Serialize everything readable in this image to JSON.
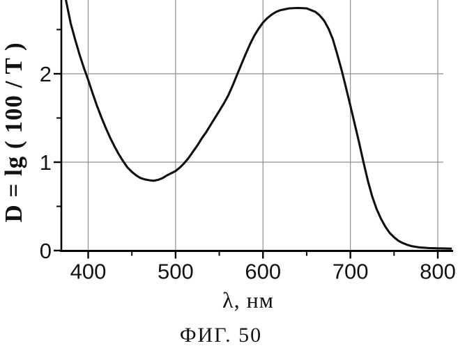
{
  "figure": {
    "caption": "ФИГ. 50"
  },
  "chart_data": {
    "type": "line",
    "title": "",
    "xlabel": "λ, нм",
    "ylabel": "D = lg ( 100 / T )",
    "xlim": [
      370,
      817
    ],
    "ylim": [
      0,
      2.84
    ],
    "x_ticks": [
      400,
      500,
      600,
      700,
      800
    ],
    "x_minor_ticks": [
      450,
      550,
      650,
      750
    ],
    "y_ticks": [
      0,
      1,
      2
    ],
    "y_minor_ticks": [
      0.5,
      1.5,
      2.5
    ],
    "grid": {
      "vertical_at": [
        400,
        500,
        600,
        700,
        800
      ],
      "horizontal_at": [
        1,
        2
      ]
    },
    "legend": "none",
    "colors": {
      "curve": "#101010",
      "grid": "#8f8f8f",
      "axis": "#000000",
      "background": "#ffffff"
    },
    "series": [
      {
        "points": [
          [
            372,
            2.97
          ],
          [
            375,
            2.81
          ],
          [
            380,
            2.57
          ],
          [
            385,
            2.39
          ],
          [
            390,
            2.22
          ],
          [
            395,
            2.07
          ],
          [
            400,
            1.93
          ],
          [
            405,
            1.78
          ],
          [
            410,
            1.64
          ],
          [
            415,
            1.51
          ],
          [
            420,
            1.39
          ],
          [
            425,
            1.28
          ],
          [
            430,
            1.18
          ],
          [
            435,
            1.09
          ],
          [
            440,
            1.01
          ],
          [
            445,
            0.94
          ],
          [
            450,
            0.89
          ],
          [
            455,
            0.85
          ],
          [
            460,
            0.82
          ],
          [
            465,
            0.805
          ],
          [
            470,
            0.795
          ],
          [
            475,
            0.79
          ],
          [
            480,
            0.8
          ],
          [
            485,
            0.82
          ],
          [
            490,
            0.85
          ],
          [
            495,
            0.875
          ],
          [
            500,
            0.9
          ],
          [
            505,
            0.94
          ],
          [
            510,
            0.99
          ],
          [
            515,
            1.05
          ],
          [
            520,
            1.12
          ],
          [
            525,
            1.19
          ],
          [
            530,
            1.27
          ],
          [
            535,
            1.34
          ],
          [
            540,
            1.42
          ],
          [
            545,
            1.5
          ],
          [
            550,
            1.58
          ],
          [
            555,
            1.66
          ],
          [
            560,
            1.75
          ],
          [
            565,
            1.86
          ],
          [
            570,
            1.98
          ],
          [
            575,
            2.1
          ],
          [
            580,
            2.22
          ],
          [
            585,
            2.33
          ],
          [
            590,
            2.43
          ],
          [
            595,
            2.51
          ],
          [
            600,
            2.58
          ],
          [
            605,
            2.63
          ],
          [
            610,
            2.67
          ],
          [
            615,
            2.7
          ],
          [
            620,
            2.72
          ],
          [
            625,
            2.73
          ],
          [
            630,
            2.74
          ],
          [
            640,
            2.745
          ],
          [
            650,
            2.74
          ],
          [
            655,
            2.72
          ],
          [
            660,
            2.7
          ],
          [
            665,
            2.66
          ],
          [
            670,
            2.6
          ],
          [
            675,
            2.51
          ],
          [
            680,
            2.39
          ],
          [
            685,
            2.22
          ],
          [
            690,
            2.04
          ],
          [
            695,
            1.84
          ],
          [
            700,
            1.64
          ],
          [
            705,
            1.43
          ],
          [
            710,
            1.22
          ],
          [
            715,
            1.0
          ],
          [
            720,
            0.79
          ],
          [
            725,
            0.61
          ],
          [
            730,
            0.47
          ],
          [
            735,
            0.36
          ],
          [
            740,
            0.27
          ],
          [
            745,
            0.2
          ],
          [
            750,
            0.15
          ],
          [
            755,
            0.11
          ],
          [
            760,
            0.085
          ],
          [
            765,
            0.065
          ],
          [
            770,
            0.05
          ],
          [
            775,
            0.042
          ],
          [
            780,
            0.035
          ],
          [
            790,
            0.028
          ],
          [
            800,
            0.025
          ],
          [
            815,
            0.022
          ]
        ]
      }
    ]
  }
}
